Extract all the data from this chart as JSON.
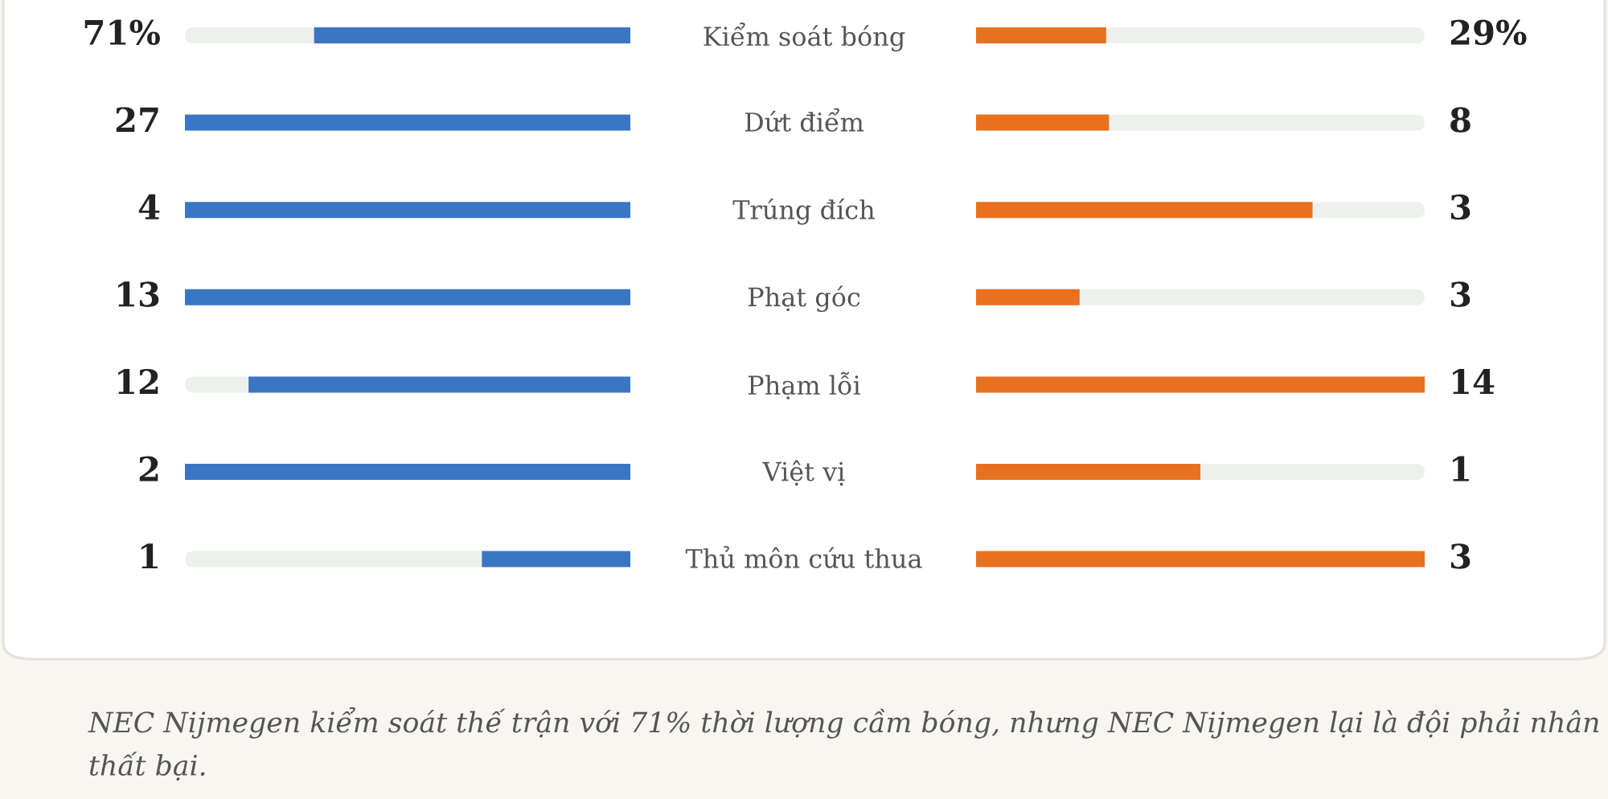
{
  "chart_data": {
    "type": "other",
    "categories": [
      "Kiểm soát bóng",
      "Dứt điểm",
      "Trúng đích",
      "Phạt góc",
      "Phạm lỗi",
      "Việt vị",
      "Thủ môn cứu thua"
    ],
    "series": [
      {
        "color": "#3a76c4",
        "values": [
          71,
          27,
          4,
          13,
          12,
          2,
          1
        ],
        "value_labels": [
          "71%",
          "27",
          "4",
          "13",
          "12",
          "2",
          "1"
        ]
      },
      {
        "color": "#e8711f",
        "values": [
          29,
          8,
          3,
          3,
          14,
          1,
          3
        ],
        "value_labels": [
          "29%",
          "8",
          "3",
          "3",
          "14",
          "1",
          "3"
        ]
      }
    ],
    "annotations": [
      "NEC Nijmegen kiểm soát thế trận với 71% thời lượng cầm bóng, nhưng NEC Nijmegen lại là đội phải nhân thất bại."
    ]
  }
}
